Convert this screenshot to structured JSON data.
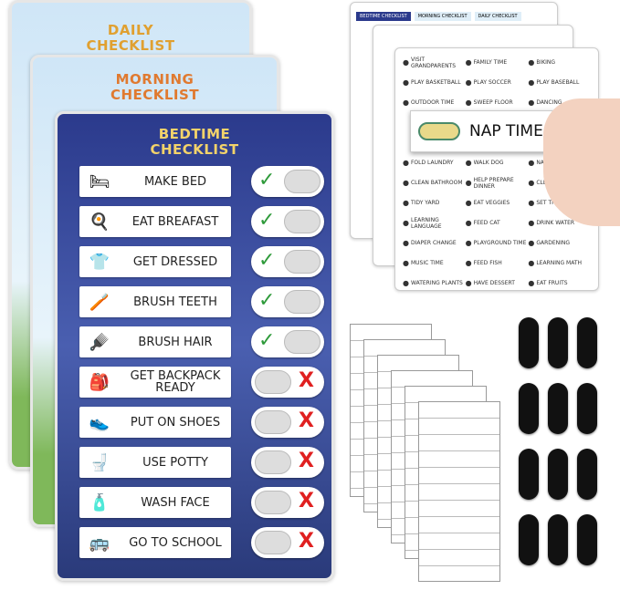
{
  "boards": {
    "daily": {
      "title_line1": "DAILY",
      "title_line2": "CHECKLIST"
    },
    "morning": {
      "title_line1": "MORNING",
      "title_line2": "CHECKLIST"
    },
    "bedtime": {
      "title_line1": "BEDTIME",
      "title_line2": "CHECKLIST",
      "accent": "#2f3f8f",
      "tasks": [
        {
          "label": "MAKE BED",
          "icon": "bed-icon",
          "done": true
        },
        {
          "label": "EAT BREAFAST",
          "icon": "breakfast-icon",
          "done": true
        },
        {
          "label": "GET DRESSED",
          "icon": "clothes-icon",
          "done": true
        },
        {
          "label": "BRUSH TEETH",
          "icon": "toothbrush-icon",
          "done": true
        },
        {
          "label": "BRUSH HAIR",
          "icon": "hairbrush-icon",
          "done": true
        },
        {
          "label": "GET BACKPACK READY",
          "icon": "backpack-icon",
          "done": false
        },
        {
          "label": "PUT ON SHOES",
          "icon": "shoes-icon",
          "done": false
        },
        {
          "label": "USE POTTY",
          "icon": "potty-icon",
          "done": false
        },
        {
          "label": "WASH FACE",
          "icon": "face-wash-icon",
          "done": false
        },
        {
          "label": "GO TO SCHOOL",
          "icon": "school-bus-icon",
          "done": false
        }
      ]
    }
  },
  "toggle": {
    "check": "✓",
    "cross": "X",
    "check_color": "#2e9a3a",
    "cross_color": "#e02020"
  },
  "sticker_tabs": [
    "BEDTIME CHECKLIST",
    "MORNING CHECKLIST",
    "DAILY CHECKLIST"
  ],
  "sticker_sheet": {
    "items": [
      "VISIT GRANDPARENTS",
      "FAMILY TIME",
      "BIKING",
      "PLAY BASKETBALL",
      "PLAY SOCCER",
      "PLAY BASEBALL",
      "OUTDOOR TIME",
      "SWEEP FLOOR",
      "DANCING",
      "",
      "",
      "",
      "",
      "",
      "",
      "FOLD LAUNDRY",
      "WALK DOG",
      "NAP TIME",
      "CLEAN BATHROOM",
      "HELP PREPARE DINNER",
      "CLEAN KITCHEN",
      "TIDY YARD",
      "EAT VEGGIES",
      "SET THE TABLE",
      "LEARNING LANGUAGE",
      "FEED CAT",
      "DRINK WATER",
      "DIAPER CHANGE",
      "PLAYGROUND TIME",
      "GARDENING",
      "MUSIC TIME",
      "FEED FISH",
      "LEARNING MATH",
      "WATERING PLANTS",
      "HAVE DESSERT",
      "EAT FRUITS"
    ]
  },
  "held_card": {
    "label": "NAP TIME",
    "icon": "sleep-mask-icon"
  }
}
